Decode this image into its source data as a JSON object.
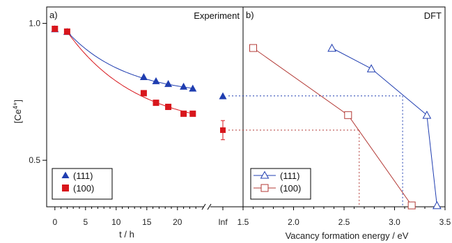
{
  "chart_data": [
    {
      "panel": "a)",
      "type": "scatter",
      "title": "Experiment",
      "xlabel": "t / h",
      "ylabel": "[Ce4+]",
      "xlim": [
        -1,
        24
      ],
      "ylim": [
        0.33,
        1.06
      ],
      "xticks": [
        "0",
        "5",
        "10",
        "15",
        "20"
      ],
      "yticks": [
        "0.5",
        "1.0"
      ],
      "break_tick_label": "Inf",
      "legend_position": "bottom-left",
      "series": [
        {
          "name": "(111)",
          "color": "#1f3db0",
          "marker": "triangle-filled",
          "x": [
            0,
            2,
            14.5,
            16.5,
            18.5,
            21,
            22.5
          ],
          "y": [
            0.98,
            0.97,
            0.805,
            0.79,
            0.78,
            0.77,
            0.763
          ],
          "inf_value": 0.735,
          "fit_curve": true
        },
        {
          "name": "(100)",
          "color": "#d8161c",
          "marker": "square-filled",
          "x": [
            0,
            2,
            14.5,
            16.5,
            18.5,
            21,
            22.5
          ],
          "y": [
            0.98,
            0.97,
            0.745,
            0.71,
            0.695,
            0.67,
            0.67
          ],
          "inf_value": 0.61,
          "inf_error": 0.035,
          "fit_curve": true
        }
      ]
    },
    {
      "panel": "b)",
      "type": "line",
      "title": "DFT",
      "xlabel": "Vacancy formation energy / eV",
      "ylabel": "",
      "xlim": [
        1.5,
        3.5
      ],
      "ylim": [
        0.33,
        1.06
      ],
      "xticks": [
        "1.5",
        "2.0",
        "2.5",
        "3.0",
        "3.5"
      ],
      "legend_position": "bottom-left",
      "series": [
        {
          "name": "(111)",
          "color": "#1f3db0",
          "marker": "triangle-open",
          "x": [
            2.38,
            2.77,
            3.32,
            3.42
          ],
          "y": [
            0.91,
            0.835,
            0.665,
            0.335
          ]
        },
        {
          "name": "(100)",
          "color": "#b33a36",
          "marker": "square-open",
          "x": [
            1.6,
            2.54,
            3.17
          ],
          "y": [
            0.91,
            0.665,
            0.335
          ]
        }
      ],
      "reference_lines": [
        {
          "series": "(111)",
          "y": 0.735,
          "x": 3.08
        },
        {
          "series": "(100)",
          "y": 0.61,
          "x": 2.65
        }
      ]
    }
  ]
}
